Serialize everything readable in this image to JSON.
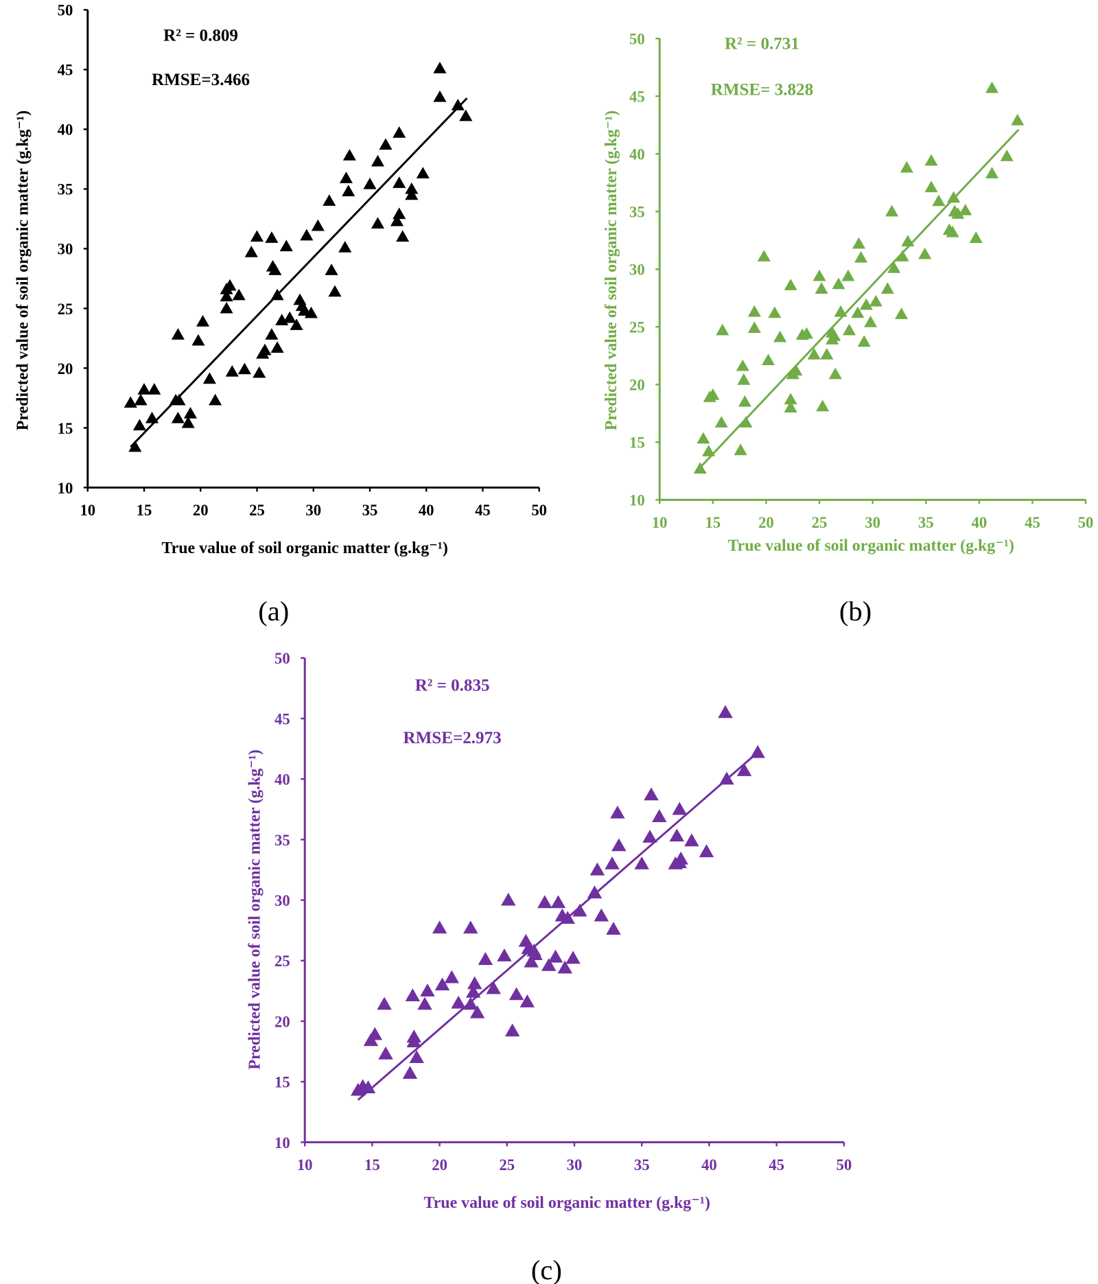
{
  "chart_data": [
    {
      "type": "scatter",
      "panel_label": "(a)",
      "color": "#000000",
      "xlabel": "True value of soil organic matter  (g.kg⁻¹)",
      "ylabel": "Predicted value of soil organic matter  (g.kg⁻¹)",
      "xlim": [
        10,
        50
      ],
      "ylim": [
        10,
        50
      ],
      "xticks": [
        10,
        15,
        20,
        25,
        30,
        35,
        40,
        45,
        50
      ],
      "yticks": [
        10,
        15,
        20,
        25,
        30,
        35,
        40,
        45,
        50
      ],
      "grid": false,
      "marker": "triangle",
      "annotations": [
        "R² = 0.809",
        "RMSE=3.466"
      ],
      "trendline": [
        [
          13.8,
          13.4
        ],
        [
          43.6,
          42.6
        ]
      ],
      "points": [
        [
          13.8,
          17.1
        ],
        [
          14.2,
          13.4
        ],
        [
          14.6,
          15.2
        ],
        [
          14.7,
          17.3
        ],
        [
          15.0,
          18.2
        ],
        [
          15.7,
          15.8
        ],
        [
          15.9,
          18.2
        ],
        [
          17.8,
          17.3
        ],
        [
          18.0,
          22.8
        ],
        [
          18.1,
          17.3
        ],
        [
          18.0,
          15.8
        ],
        [
          18.9,
          15.4
        ],
        [
          19.1,
          16.2
        ],
        [
          19.8,
          22.3
        ],
        [
          20.2,
          23.9
        ],
        [
          20.8,
          19.1
        ],
        [
          21.3,
          17.3
        ],
        [
          22.3,
          25.0
        ],
        [
          22.3,
          26.6
        ],
        [
          22.6,
          26.9
        ],
        [
          22.3,
          26.0
        ],
        [
          22.8,
          19.7
        ],
        [
          23.4,
          26.1
        ],
        [
          23.9,
          19.9
        ],
        [
          24.5,
          29.7
        ],
        [
          25.0,
          31.0
        ],
        [
          25.2,
          19.6
        ],
        [
          25.5,
          21.2
        ],
        [
          25.7,
          21.5
        ],
        [
          26.3,
          30.9
        ],
        [
          26.3,
          22.8
        ],
        [
          26.4,
          28.5
        ],
        [
          26.6,
          28.2
        ],
        [
          26.8,
          21.7
        ],
        [
          26.8,
          26.1
        ],
        [
          27.2,
          24.0
        ],
        [
          27.6,
          30.2
        ],
        [
          27.9,
          24.2
        ],
        [
          28.5,
          23.6
        ],
        [
          28.8,
          25.7
        ],
        [
          29.0,
          25.2
        ],
        [
          29.4,
          31.1
        ],
        [
          29.2,
          24.8
        ],
        [
          29.8,
          24.6
        ],
        [
          30.4,
          31.9
        ],
        [
          31.4,
          34.0
        ],
        [
          31.6,
          28.2
        ],
        [
          31.9,
          26.4
        ],
        [
          32.8,
          30.1
        ],
        [
          32.9,
          35.9
        ],
        [
          33.1,
          34.8
        ],
        [
          33.2,
          37.8
        ],
        [
          35.0,
          35.4
        ],
        [
          35.7,
          37.3
        ],
        [
          35.7,
          32.1
        ],
        [
          36.4,
          38.7
        ],
        [
          37.6,
          39.7
        ],
        [
          37.6,
          35.5
        ],
        [
          37.4,
          32.3
        ],
        [
          37.6,
          32.9
        ],
        [
          37.9,
          31.0
        ],
        [
          38.7,
          35.0
        ],
        [
          38.7,
          34.5
        ],
        [
          39.7,
          36.3
        ],
        [
          41.2,
          45.1
        ],
        [
          41.2,
          42.7
        ],
        [
          42.8,
          42.0
        ],
        [
          43.5,
          41.1
        ]
      ]
    },
    {
      "type": "scatter",
      "panel_label": "(b)",
      "color": "#70ad47",
      "xlabel": "True value of soil organic matter  (g.kg⁻¹)",
      "ylabel": "Predicted value of soil organic matter  (g.kg⁻¹)",
      "xlim": [
        10,
        50
      ],
      "ylim": [
        10,
        50
      ],
      "xticks": [
        10,
        15,
        20,
        25,
        30,
        35,
        40,
        45,
        50
      ],
      "yticks": [
        10,
        15,
        20,
        25,
        30,
        35,
        40,
        45,
        50
      ],
      "grid": false,
      "marker": "triangle",
      "annotations": [
        "R² = 0.731",
        "RMSE= 3.828"
      ],
      "trendline": [
        [
          13.8,
          12.8
        ],
        [
          43.7,
          42.1
        ]
      ],
      "points": [
        [
          13.8,
          12.7
        ],
        [
          14.1,
          15.3
        ],
        [
          14.6,
          14.2
        ],
        [
          14.7,
          18.9
        ],
        [
          15.0,
          19.1
        ],
        [
          15.8,
          16.7
        ],
        [
          15.9,
          24.7
        ],
        [
          17.6,
          14.3
        ],
        [
          17.8,
          21.6
        ],
        [
          17.9,
          20.4
        ],
        [
          18.0,
          18.5
        ],
        [
          18.1,
          16.7
        ],
        [
          18.9,
          26.3
        ],
        [
          18.9,
          24.9
        ],
        [
          19.8,
          31.1
        ],
        [
          20.2,
          22.1
        ],
        [
          20.8,
          26.2
        ],
        [
          21.3,
          24.1
        ],
        [
          22.3,
          28.6
        ],
        [
          22.3,
          18.7
        ],
        [
          22.3,
          18.0
        ],
        [
          22.5,
          20.9
        ],
        [
          22.8,
          21.2
        ],
        [
          23.4,
          24.3
        ],
        [
          23.8,
          24.4
        ],
        [
          24.5,
          22.6
        ],
        [
          25.0,
          29.4
        ],
        [
          25.2,
          28.3
        ],
        [
          25.3,
          18.1
        ],
        [
          25.7,
          22.6
        ],
        [
          26.2,
          24.5
        ],
        [
          26.2,
          23.9
        ],
        [
          26.4,
          24.2
        ],
        [
          26.5,
          20.9
        ],
        [
          26.8,
          28.7
        ],
        [
          27.0,
          26.3
        ],
        [
          27.7,
          29.4
        ],
        [
          27.8,
          24.7
        ],
        [
          28.6,
          26.2
        ],
        [
          28.7,
          32.2
        ],
        [
          28.9,
          31.0
        ],
        [
          29.2,
          23.7
        ],
        [
          29.4,
          26.9
        ],
        [
          29.8,
          25.4
        ],
        [
          30.3,
          27.2
        ],
        [
          31.4,
          28.3
        ],
        [
          31.8,
          35.0
        ],
        [
          32.0,
          30.1
        ],
        [
          32.7,
          26.1
        ],
        [
          32.8,
          31.1
        ],
        [
          33.2,
          38.8
        ],
        [
          33.3,
          32.4
        ],
        [
          34.9,
          31.3
        ],
        [
          35.5,
          39.4
        ],
        [
          35.5,
          37.1
        ],
        [
          36.2,
          35.9
        ],
        [
          37.2,
          33.4
        ],
        [
          37.5,
          33.2
        ],
        [
          37.6,
          36.2
        ],
        [
          37.7,
          35.0
        ],
        [
          38.0,
          34.8
        ],
        [
          38.7,
          35.1
        ],
        [
          39.7,
          32.7
        ],
        [
          41.2,
          38.3
        ],
        [
          41.2,
          45.7
        ],
        [
          42.6,
          39.8
        ],
        [
          43.6,
          42.9
        ]
      ]
    },
    {
      "type": "scatter",
      "panel_label": "(c)",
      "color": "#7030a0",
      "xlabel": "True value of soil organic matter  (g.kg⁻¹)",
      "ylabel": "Predicted value of soil organic matter  (g.kg⁻¹)",
      "xlim": [
        10,
        50
      ],
      "ylim": [
        10,
        50
      ],
      "xticks": [
        10,
        15,
        20,
        25,
        30,
        35,
        40,
        45,
        50
      ],
      "yticks": [
        10,
        15,
        20,
        25,
        30,
        35,
        40,
        45,
        50
      ],
      "grid": false,
      "marker": "triangle",
      "annotations": [
        "R² = 0.835",
        "RMSE=2.973"
      ],
      "trendline": [
        [
          13.95,
          13.5
        ],
        [
          43.8,
          42.4
        ]
      ],
      "points": [
        [
          13.95,
          14.3
        ],
        [
          14.3,
          14.6
        ],
        [
          14.7,
          14.5
        ],
        [
          14.9,
          18.4
        ],
        [
          15.2,
          18.9
        ],
        [
          15.9,
          21.4
        ],
        [
          16.0,
          17.3
        ],
        [
          17.8,
          15.7
        ],
        [
          18.0,
          22.1
        ],
        [
          18.1,
          18.7
        ],
        [
          18.1,
          18.3
        ],
        [
          18.3,
          17.0
        ],
        [
          18.9,
          21.4
        ],
        [
          19.1,
          22.5
        ],
        [
          20.0,
          27.7
        ],
        [
          20.2,
          23.0
        ],
        [
          20.9,
          23.6
        ],
        [
          21.4,
          21.5
        ],
        [
          22.3,
          21.4
        ],
        [
          22.3,
          27.7
        ],
        [
          22.5,
          22.4
        ],
        [
          22.6,
          23.1
        ],
        [
          22.8,
          20.7
        ],
        [
          23.4,
          25.1
        ],
        [
          24.0,
          22.7
        ],
        [
          24.8,
          25.4
        ],
        [
          25.1,
          30.0
        ],
        [
          25.4,
          19.2
        ],
        [
          25.7,
          22.2
        ],
        [
          26.4,
          26.6
        ],
        [
          26.5,
          21.6
        ],
        [
          26.6,
          26.0
        ],
        [
          26.8,
          24.9
        ],
        [
          27.0,
          25.8
        ],
        [
          27.1,
          25.5
        ],
        [
          27.8,
          29.8
        ],
        [
          28.1,
          24.6
        ],
        [
          28.6,
          25.3
        ],
        [
          28.8,
          29.8
        ],
        [
          29.1,
          28.7
        ],
        [
          29.3,
          24.4
        ],
        [
          29.5,
          28.5
        ],
        [
          29.9,
          25.2
        ],
        [
          30.4,
          29.1
        ],
        [
          31.5,
          30.6
        ],
        [
          31.7,
          32.5
        ],
        [
          32.0,
          28.7
        ],
        [
          32.8,
          33.0
        ],
        [
          32.9,
          27.6
        ],
        [
          33.2,
          37.2
        ],
        [
          33.3,
          34.5
        ],
        [
          35.0,
          33.0
        ],
        [
          35.7,
          38.7
        ],
        [
          35.6,
          35.2
        ],
        [
          36.3,
          36.9
        ],
        [
          37.5,
          33.0
        ],
        [
          37.6,
          35.3
        ],
        [
          37.8,
          37.5
        ],
        [
          37.8,
          33.1
        ],
        [
          37.9,
          33.4
        ],
        [
          38.7,
          34.9
        ],
        [
          39.8,
          34.0
        ],
        [
          41.2,
          45.5
        ],
        [
          41.3,
          40.0
        ],
        [
          42.6,
          40.7
        ],
        [
          43.6,
          42.2
        ]
      ]
    }
  ]
}
